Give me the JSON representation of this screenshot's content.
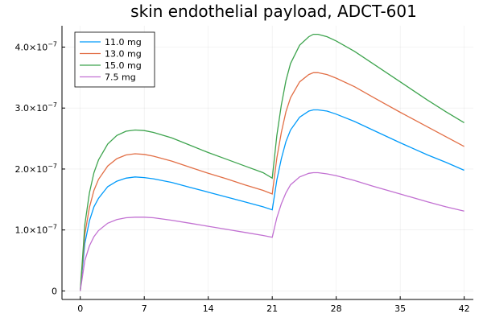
{
  "chart_data": {
    "type": "line",
    "title": "skin endothelial payload, ADCT-601",
    "xlabel": "",
    "ylabel": "",
    "xlim": [
      -2,
      43
    ],
    "ylim": [
      -1.4e-08,
      4.35e-07
    ],
    "x_ticks": [
      0,
      7,
      14,
      21,
      28,
      35,
      42
    ],
    "x_tick_labels": [
      "0",
      "7",
      "14",
      "21",
      "28",
      "35",
      "42"
    ],
    "y_ticks": [
      0,
      1e-07,
      2e-07,
      3e-07,
      4e-07
    ],
    "y_tick_mantissa": [
      "0",
      "1.0",
      "2.0",
      "3.0",
      "4.0"
    ],
    "y_tick_exponent": [
      "",
      "−7",
      "−7",
      "−7",
      "−7"
    ],
    "y_tick_base": "×10",
    "grid": true,
    "legend_position": "top-left",
    "series": [
      {
        "name": "11.0 mg",
        "color": "#009AFA",
        "x": [
          0,
          0.5,
          1,
          1.5,
          2,
          3,
          4,
          5,
          6,
          7,
          8,
          10,
          12,
          14,
          16,
          18,
          20,
          21,
          21.5,
          22,
          22.5,
          23,
          24,
          25,
          25.5,
          26,
          27,
          28,
          30,
          32,
          35,
          38,
          40,
          42
        ],
        "y": [
          0,
          7.8e-08,
          1.15e-07,
          1.38e-07,
          1.52e-07,
          1.71e-07,
          1.8e-07,
          1.85e-07,
          1.87e-07,
          1.86e-07,
          1.84e-07,
          1.78e-07,
          1.7e-07,
          1.62e-07,
          1.54e-07,
          1.46e-07,
          1.38e-07,
          1.33e-07,
          1.82e-07,
          2.17e-07,
          2.45e-07,
          2.64e-07,
          2.85e-07,
          2.95e-07,
          2.97e-07,
          2.97e-07,
          2.95e-07,
          2.9e-07,
          2.78e-07,
          2.64e-07,
          2.43e-07,
          2.23e-07,
          2.11e-07,
          1.98e-07
        ]
      },
      {
        "name": "13.0 mg",
        "color": "#E26F46",
        "x": [
          0,
          0.5,
          1,
          1.5,
          2,
          3,
          4,
          5,
          6,
          7,
          8,
          10,
          12,
          14,
          16,
          18,
          20,
          21,
          21.5,
          22,
          22.5,
          23,
          24,
          25,
          25.5,
          26,
          27,
          28,
          30,
          32,
          35,
          38,
          40,
          42
        ],
        "y": [
          0,
          9.3e-08,
          1.37e-07,
          1.65e-07,
          1.83e-07,
          2.05e-07,
          2.17e-07,
          2.23e-07,
          2.25e-07,
          2.24e-07,
          2.21e-07,
          2.13e-07,
          2.03e-07,
          1.93e-07,
          1.84e-07,
          1.74e-07,
          1.65e-07,
          1.59e-07,
          2.18e-07,
          2.6e-07,
          2.94e-07,
          3.17e-07,
          3.43e-07,
          3.55e-07,
          3.58e-07,
          3.58e-07,
          3.55e-07,
          3.49e-07,
          3.35e-07,
          3.18e-07,
          2.93e-07,
          2.69e-07,
          2.53e-07,
          2.37e-07
        ]
      },
      {
        "name": "15.0 mg",
        "color": "#3EA44E",
        "x": [
          0,
          0.5,
          1,
          1.5,
          2,
          3,
          4,
          5,
          6,
          7,
          8,
          10,
          12,
          14,
          16,
          18,
          20,
          21,
          21.5,
          22,
          22.5,
          23,
          24,
          25,
          25.5,
          26,
          27,
          28,
          30,
          32,
          35,
          38,
          40,
          42
        ],
        "y": [
          0,
          1.09e-07,
          1.61e-07,
          1.94e-07,
          2.15e-07,
          2.41e-07,
          2.55e-07,
          2.62e-07,
          2.64e-07,
          2.63e-07,
          2.6e-07,
          2.51e-07,
          2.39e-07,
          2.27e-07,
          2.16e-07,
          2.05e-07,
          1.94e-07,
          1.85e-07,
          2.55e-07,
          3.05e-07,
          3.45e-07,
          3.73e-07,
          4.03e-07,
          4.17e-07,
          4.21e-07,
          4.21e-07,
          4.17e-07,
          4.1e-07,
          3.93e-07,
          3.73e-07,
          3.43e-07,
          3.13e-07,
          2.94e-07,
          2.76e-07
        ]
      },
      {
        "name": "7.5 mg",
        "color": "#C271D2",
        "x": [
          0,
          0.5,
          1,
          1.5,
          2,
          3,
          4,
          5,
          6,
          7,
          8,
          10,
          12,
          14,
          16,
          18,
          20,
          21,
          21.5,
          22,
          22.5,
          23,
          24,
          25,
          25.5,
          26,
          27,
          28,
          30,
          32,
          35,
          38,
          40,
          42
        ],
        "y": [
          0,
          5e-08,
          7.4e-08,
          8.9e-08,
          9.9e-08,
          1.11e-07,
          1.17e-07,
          1.2e-07,
          1.21e-07,
          1.21e-07,
          1.2e-07,
          1.16e-07,
          1.11e-07,
          1.06e-07,
          1.01e-07,
          9.6e-08,
          9.1e-08,
          8.8e-08,
          1.2e-07,
          1.43e-07,
          1.61e-07,
          1.74e-07,
          1.87e-07,
          1.93e-07,
          1.94e-07,
          1.94e-07,
          1.92e-07,
          1.89e-07,
          1.81e-07,
          1.72e-07,
          1.59e-07,
          1.46e-07,
          1.38e-07,
          1.31e-07
        ]
      }
    ]
  }
}
